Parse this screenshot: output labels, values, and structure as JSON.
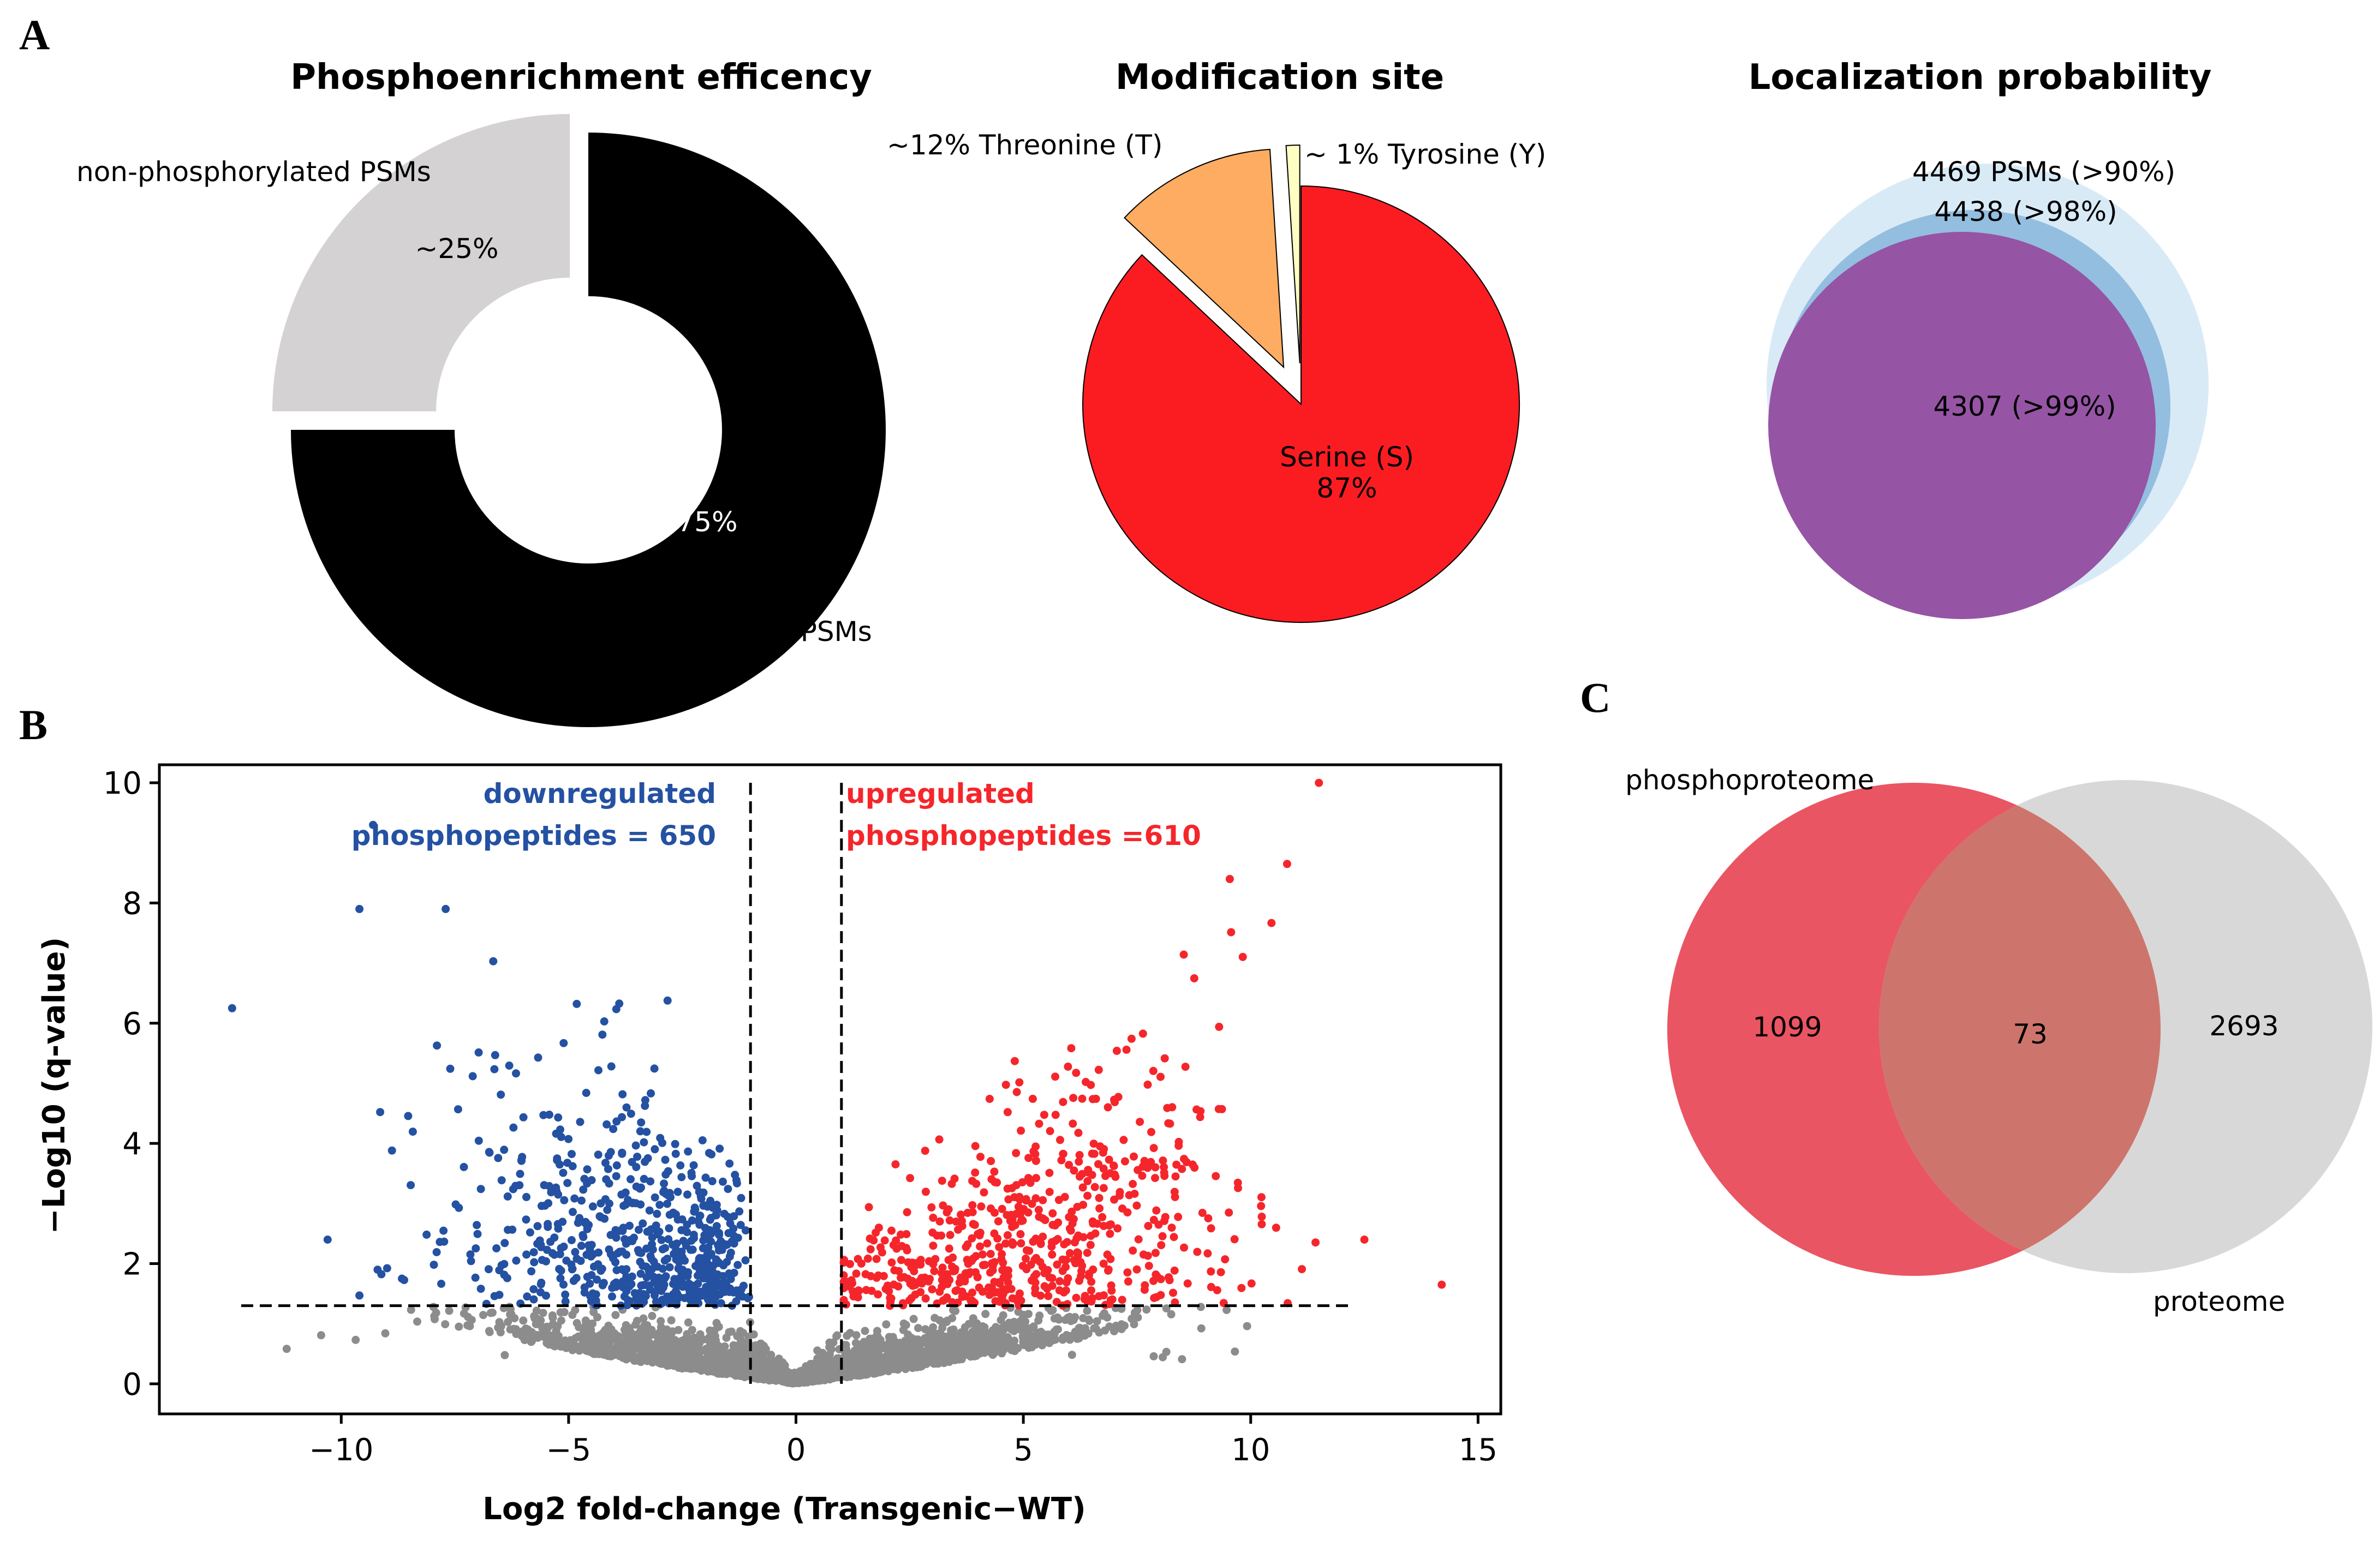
{
  "panel_labels": {
    "a": "A",
    "b": "B",
    "c": "C"
  },
  "chart_data": [
    {
      "id": "phospho-efficiency",
      "type": "pie",
      "donut": true,
      "title": "Phosphoenrichment efficency",
      "slices": [
        {
          "label": "phosphorylated PSMs",
          "value": 75,
          "pct_label": "~75%",
          "color": "#000000",
          "pct_color": "#ffffff"
        },
        {
          "label": "non-phosphorylated PSMs",
          "value": 25,
          "pct_label": "~25%",
          "color": "#d4d2d3",
          "pct_color": "#000000",
          "exploded": true
        }
      ]
    },
    {
      "id": "modification-site",
      "type": "pie",
      "title": "Modification site",
      "slices": [
        {
          "label": "Serine (S)",
          "value": 87,
          "pct_label": "87%",
          "color": "#fb1c22"
        },
        {
          "label": "~12% Threonine (T)",
          "value": 12,
          "color": "#fdac61",
          "exploded": true
        },
        {
          "label": "~ 1% Tyrosine (Y)",
          "value": 1,
          "color": "#fefec2",
          "exploded": true
        }
      ]
    },
    {
      "id": "localization-probability",
      "type": "venn",
      "title": "Localization probability",
      "sets": [
        {
          "label": "4469 PSMs (>90%)",
          "value": 4469,
          "color": "#d9eaf7"
        },
        {
          "label": "4438 (>98%)",
          "value": 4438,
          "color": "#94bedf"
        },
        {
          "label": "4307 (>99%)",
          "value": 4307,
          "color": "#9654a5"
        }
      ]
    },
    {
      "id": "volcano",
      "type": "scatter",
      "title": "",
      "xlabel": "Log2 fold-change (Transgenic−WT)",
      "ylabel": "−Log10 (q-value)",
      "xlim": [
        -14,
        15.5
      ],
      "ylim": [
        -0.5,
        10.3
      ],
      "xticks": [
        -10,
        -5,
        0,
        5,
        10,
        15
      ],
      "yticks": [
        0,
        2,
        4,
        6,
        8,
        10
      ],
      "x_tick_labels": [
        "−10",
        "−5",
        "0",
        "5",
        "10",
        "15"
      ],
      "y_tick_labels": [
        "0",
        "2",
        "4",
        "6",
        "8",
        "10"
      ],
      "thresholds": {
        "fold_change": 1,
        "q_value_line": 1.3
      },
      "annotations": {
        "down_line1": "downregulated",
        "down_line2": "phosphopeptides = 650",
        "up_line1": "upregulated",
        "up_line2": "phosphopeptides =610"
      },
      "series": [
        {
          "name": "downregulated",
          "count": 650,
          "color": "#2451a2"
        },
        {
          "name": "upregulated",
          "count": 610,
          "color": "#f5262b"
        },
        {
          "name": "not significant",
          "color": "#8c8c8c"
        }
      ],
      "notable_points": [
        {
          "x": -12.4,
          "y": 6.25,
          "group": "down"
        },
        {
          "x": -10.3,
          "y": 2.4,
          "group": "down"
        },
        {
          "x": -9.3,
          "y": 9.3,
          "group": "down"
        },
        {
          "x": -9.2,
          "y": 1.9,
          "group": "down"
        },
        {
          "x": 11.5,
          "y": 10.0,
          "group": "up"
        },
        {
          "x": 10.8,
          "y": 8.65,
          "group": "up"
        },
        {
          "x": 12.5,
          "y": 2.4,
          "group": "up"
        },
        {
          "x": 14.2,
          "y": 1.65,
          "group": "up"
        }
      ]
    },
    {
      "id": "phospho-vs-proteome",
      "type": "venn",
      "title": "",
      "sets": [
        {
          "label": "phosphoproteome",
          "only": 1099,
          "only_label": "1099",
          "color": "#ea5563"
        },
        {
          "label": "proteome",
          "only": 2693,
          "only_label": "2693",
          "color": "#d9d8d8"
        }
      ],
      "intersection": 73,
      "intersection_label": "73",
      "intersection_color": "#cd756c"
    }
  ]
}
